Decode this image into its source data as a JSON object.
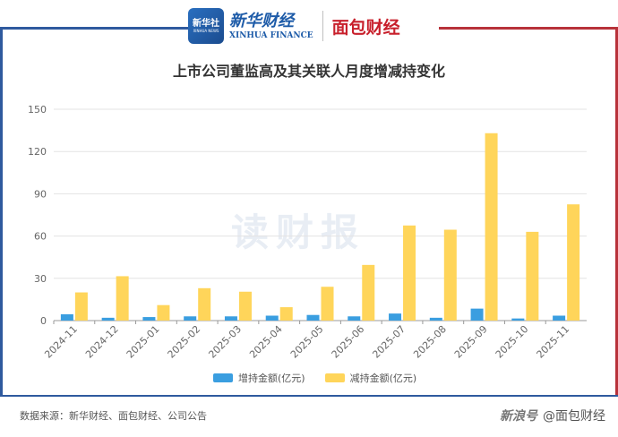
{
  "header": {
    "xinhua_logo_text": "新华社",
    "xinhua_logo_sub": "XINHUA NEWS",
    "xinhua_brand_cn": "新华财经",
    "xinhua_brand_en": "XINHUA FINANCE",
    "mianbao_brand": "面包财经"
  },
  "watermark": "读财报",
  "footer": {
    "source": "数据来源：新华财经、面包财经、公司公告",
    "credit_brand": "新浪号",
    "credit": "@面包财经"
  },
  "colors": {
    "increase": "#3a9ee0",
    "decrease": "#ffd55a",
    "frame_blue": "#2f5a9e",
    "frame_red": "#b8323a"
  },
  "chart_data": {
    "type": "bar",
    "title": "上市公司董监高及其关联人月度增减持变化",
    "categories": [
      "2024-11",
      "2024-12",
      "2025-01",
      "2025-02",
      "2025-03",
      "2025-04",
      "2025-05",
      "2025-06",
      "2025-07",
      "2025-08",
      "2025-09",
      "2025-10",
      "2025-11"
    ],
    "series": [
      {
        "name": "增持金额(亿元)",
        "values": [
          4.5,
          2,
          2.5,
          3,
          3,
          3.5,
          4,
          3,
          5,
          2,
          8.5,
          1.5,
          3.5
        ]
      },
      {
        "name": "减持金额(亿元)",
        "values": [
          20,
          31.5,
          11,
          23,
          20.5,
          9.5,
          24,
          39.5,
          67.5,
          64.5,
          133,
          63,
          82.5
        ]
      }
    ],
    "ylim": [
      0,
      150
    ],
    "yticks": [
      0,
      30,
      60,
      90,
      120,
      150
    ],
    "grid": true,
    "legend": "bottom"
  }
}
